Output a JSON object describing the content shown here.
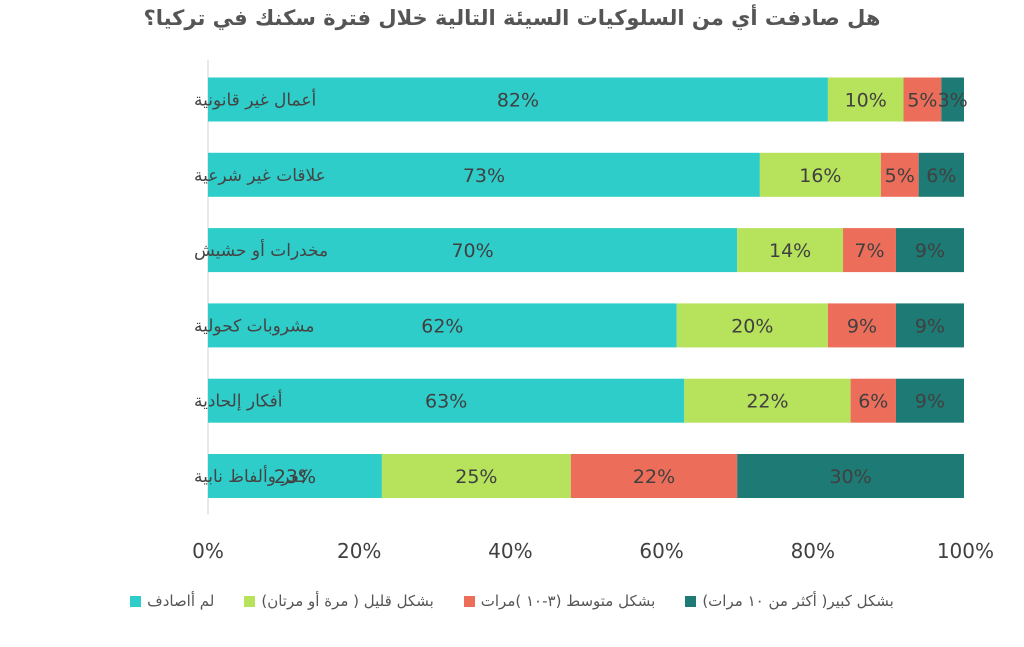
{
  "chart_data": {
    "type": "bar",
    "orientation": "horizontal",
    "stacked": true,
    "title": "هل صادفت أي من السلوكيات السيئة التالية خلال فترة سكنك في تركيا؟",
    "categories": [
      "أعمال غير قانونية",
      "علاقات غير شرعية",
      "مخدرات أو حشيش",
      "مشروبات كحولية",
      "أفكار إلحادية",
      "كفر وألفاظ نابية"
    ],
    "series": [
      {
        "name": "لم أاصادف",
        "color": "#2ECDC9",
        "values": [
          82,
          73,
          70,
          62,
          63,
          23
        ],
        "labels": [
          "82%",
          "73%",
          "70%",
          "62%",
          "63%",
          "23%"
        ]
      },
      {
        "name": "بشكل قليل ( مرة أو مرتان)",
        "color": "#B7E25C",
        "values": [
          10,
          16,
          14,
          20,
          22,
          25
        ],
        "labels": [
          "10%",
          "16%",
          "14%",
          "20%",
          "22%",
          "25%"
        ]
      },
      {
        "name": "بشكل متوسط (٣-١٠ )مرات",
        "color": "#EC6E5A",
        "values": [
          5,
          5,
          7,
          9,
          6,
          22
        ],
        "labels": [
          "5%",
          "5%",
          "7%",
          "9%",
          "6%",
          "22%"
        ]
      },
      {
        "name": "بشكل كبير( أكثر من ١٠ مرات)",
        "color": "#1D7A74",
        "values": [
          3,
          6,
          9,
          9,
          9,
          30
        ],
        "labels": [
          "3%",
          "6%",
          "9%",
          "9%",
          "9%",
          "30%"
        ]
      }
    ],
    "xlim": [
      0,
      100
    ],
    "x_ticks": [
      "0%",
      "20%",
      "40%",
      "60%",
      "80%",
      "100%"
    ],
    "grid": false,
    "legend_position": "bottom"
  }
}
